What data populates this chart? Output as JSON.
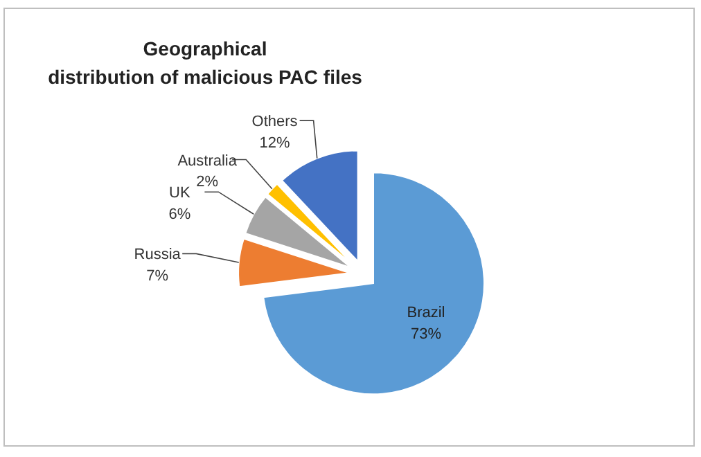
{
  "chart_data": {
    "type": "pie",
    "title": "Geographical distribution of malicious PAC files",
    "categories": [
      "Brazil",
      "Russia",
      "UK",
      "Australia",
      "Others"
    ],
    "values": [
      73,
      7,
      6,
      2,
      12
    ],
    "colors": [
      "#5b9bd5",
      "#ed7d31",
      "#a5a5a5",
      "#ffc000",
      "#4472c4"
    ],
    "value_labels": [
      "73%",
      "7%",
      "6%",
      "2%",
      "12%"
    ]
  }
}
